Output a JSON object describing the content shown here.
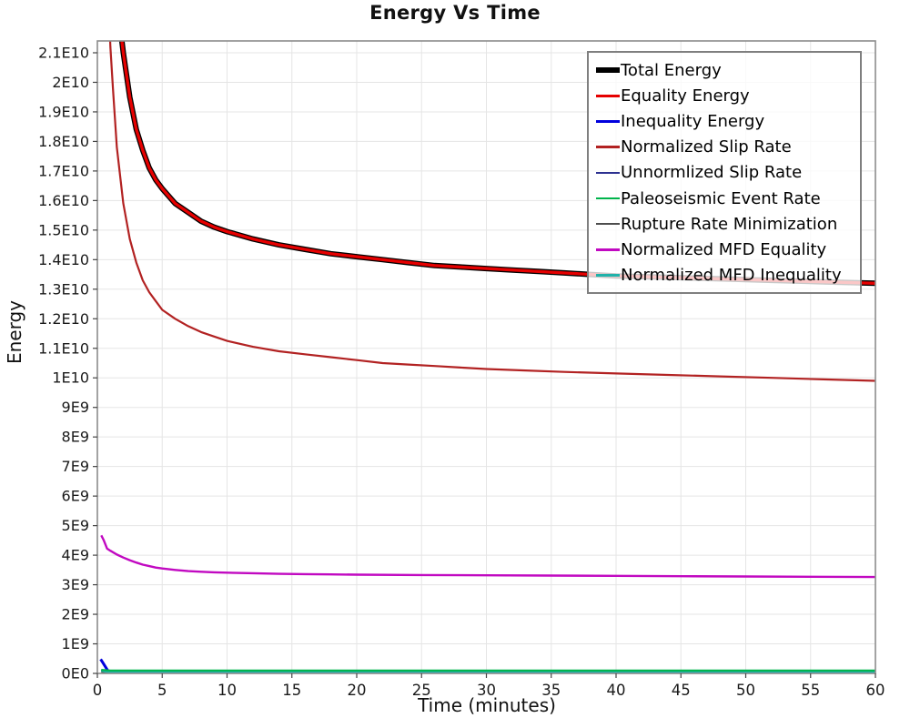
{
  "chart_data": {
    "type": "line",
    "title": "Energy Vs Time",
    "xlabel": "Time (minutes)",
    "ylabel": "Energy",
    "xlim": [
      0,
      60
    ],
    "ylim_e9": [
      0,
      21.4
    ],
    "grid": true,
    "x_ticks": [
      0,
      5,
      10,
      15,
      20,
      25,
      30,
      35,
      40,
      45,
      50,
      55,
      60
    ],
    "y_ticks": [
      {
        "v": 0,
        "label": "0E0"
      },
      {
        "v": 1,
        "label": "1E9"
      },
      {
        "v": 2,
        "label": "2E9"
      },
      {
        "v": 3,
        "label": "3E9"
      },
      {
        "v": 4,
        "label": "4E9"
      },
      {
        "v": 5,
        "label": "5E9"
      },
      {
        "v": 6,
        "label": "6E9"
      },
      {
        "v": 7,
        "label": "7E9"
      },
      {
        "v": 8,
        "label": "8E9"
      },
      {
        "v": 9,
        "label": "9E9"
      },
      {
        "v": 10,
        "label": "1E10"
      },
      {
        "v": 11,
        "label": "1.1E10"
      },
      {
        "v": 12,
        "label": "1.2E10"
      },
      {
        "v": 13,
        "label": "1.3E10"
      },
      {
        "v": 14,
        "label": "1.4E10"
      },
      {
        "v": 15,
        "label": "1.5E10"
      },
      {
        "v": 16,
        "label": "1.6E10"
      },
      {
        "v": 17,
        "label": "1.7E10"
      },
      {
        "v": 18,
        "label": "1.8E10"
      },
      {
        "v": 19,
        "label": "1.9E10"
      },
      {
        "v": 20,
        "label": "2E10"
      },
      {
        "v": 21,
        "label": "2.1E10"
      }
    ],
    "colors": {
      "background": "#ffffff",
      "grid": "#e5e5e5",
      "frame": "#8c8c8c",
      "tick": "#444444",
      "text": "#1a1a1a"
    },
    "legend_position": "top-right",
    "series": [
      {
        "name": "Total Energy",
        "color": "#000000",
        "line_width": 6,
        "z": 1,
        "points_e9": [
          [
            0.5,
            30
          ],
          [
            1,
            25.5
          ],
          [
            1.5,
            22.8
          ],
          [
            2,
            21.0
          ],
          [
            2.5,
            19.5
          ],
          [
            3,
            18.4
          ],
          [
            3.5,
            17.7
          ],
          [
            4,
            17.1
          ],
          [
            4.5,
            16.7
          ],
          [
            5,
            16.4
          ],
          [
            6,
            15.9
          ],
          [
            7,
            15.6
          ],
          [
            8,
            15.3
          ],
          [
            9,
            15.1
          ],
          [
            10,
            14.95
          ],
          [
            12,
            14.7
          ],
          [
            14,
            14.5
          ],
          [
            16,
            14.35
          ],
          [
            18,
            14.2
          ],
          [
            20,
            14.1
          ],
          [
            22,
            14.0
          ],
          [
            24,
            13.9
          ],
          [
            26,
            13.8
          ],
          [
            28,
            13.75
          ],
          [
            30,
            13.7
          ],
          [
            32,
            13.65
          ],
          [
            34,
            13.6
          ],
          [
            36,
            13.55
          ],
          [
            38,
            13.5
          ],
          [
            40,
            13.45
          ],
          [
            44,
            13.4
          ],
          [
            48,
            13.35
          ],
          [
            52,
            13.3
          ],
          [
            56,
            13.25
          ],
          [
            60,
            13.2
          ]
        ]
      },
      {
        "name": "Equality Energy",
        "color": "#e60000",
        "line_width": 3.4,
        "z": 2,
        "points_e9": [
          [
            0.5,
            30
          ],
          [
            1,
            25.5
          ],
          [
            1.5,
            22.8
          ],
          [
            2,
            21.0
          ],
          [
            2.5,
            19.5
          ],
          [
            3,
            18.4
          ],
          [
            3.5,
            17.7
          ],
          [
            4,
            17.1
          ],
          [
            4.5,
            16.7
          ],
          [
            5,
            16.4
          ],
          [
            6,
            15.9
          ],
          [
            7,
            15.6
          ],
          [
            8,
            15.3
          ],
          [
            9,
            15.1
          ],
          [
            10,
            14.95
          ],
          [
            12,
            14.7
          ],
          [
            14,
            14.5
          ],
          [
            16,
            14.35
          ],
          [
            18,
            14.2
          ],
          [
            20,
            14.1
          ],
          [
            22,
            14.0
          ],
          [
            24,
            13.9
          ],
          [
            26,
            13.8
          ],
          [
            28,
            13.75
          ],
          [
            30,
            13.7
          ],
          [
            32,
            13.65
          ],
          [
            34,
            13.6
          ],
          [
            36,
            13.55
          ],
          [
            38,
            13.5
          ],
          [
            40,
            13.45
          ],
          [
            44,
            13.4
          ],
          [
            48,
            13.35
          ],
          [
            52,
            13.3
          ],
          [
            56,
            13.25
          ],
          [
            60,
            13.2
          ]
        ]
      },
      {
        "name": "Inequality Energy",
        "color": "#0000dd",
        "line_width": 3,
        "z": 7,
        "points_e9": [
          [
            0.25,
            0.48
          ],
          [
            0.4,
            0.38
          ],
          [
            0.6,
            0.24
          ],
          [
            0.8,
            0.1
          ],
          [
            1,
            0.05
          ],
          [
            1.5,
            0.03
          ],
          [
            5,
            0.03
          ],
          [
            60,
            0.03
          ]
        ]
      },
      {
        "name": "Normalized Slip Rate",
        "color": "#b22222",
        "line_width": 2.2,
        "z": 3,
        "points_e9": [
          [
            0.5,
            28
          ],
          [
            0.8,
            23.5
          ],
          [
            1,
            21.2
          ],
          [
            1.2,
            19.8
          ],
          [
            1.5,
            17.8
          ],
          [
            2,
            15.9
          ],
          [
            2.5,
            14.7
          ],
          [
            3,
            13.9
          ],
          [
            3.5,
            13.3
          ],
          [
            4,
            12.9
          ],
          [
            4.5,
            12.6
          ],
          [
            5,
            12.3
          ],
          [
            6,
            12.0
          ],
          [
            7,
            11.75
          ],
          [
            8,
            11.55
          ],
          [
            9,
            11.4
          ],
          [
            10,
            11.25
          ],
          [
            12,
            11.05
          ],
          [
            14,
            10.9
          ],
          [
            16,
            10.8
          ],
          [
            18,
            10.7
          ],
          [
            20,
            10.6
          ],
          [
            22,
            10.5
          ],
          [
            24,
            10.45
          ],
          [
            26,
            10.4
          ],
          [
            28,
            10.35
          ],
          [
            30,
            10.3
          ],
          [
            33,
            10.25
          ],
          [
            36,
            10.2
          ],
          [
            40,
            10.15
          ],
          [
            44,
            10.1
          ],
          [
            48,
            10.05
          ],
          [
            52,
            10.0
          ],
          [
            56,
            9.95
          ],
          [
            60,
            9.9
          ]
        ]
      },
      {
        "name": "Unnormlized Slip Rate",
        "color": "#2d3190",
        "line_width": 2.2,
        "z": 4,
        "points_e9": [
          [
            0.3,
            0.12
          ],
          [
            0.6,
            0.06
          ],
          [
            1,
            0.03
          ],
          [
            5,
            0.03
          ],
          [
            60,
            0.03
          ]
        ]
      },
      {
        "name": "Paleoseismic Event Rate",
        "color": "#00b44b",
        "line_width": 2.2,
        "z": 9,
        "points_e9": [
          [
            0.3,
            0.12
          ],
          [
            1,
            0.1
          ],
          [
            5,
            0.1
          ],
          [
            60,
            0.1
          ]
        ]
      },
      {
        "name": "Rupture Rate Minimization",
        "color": "#4d4d4d",
        "line_width": 2.2,
        "z": 5,
        "points_e9": [
          [
            0.3,
            0.06
          ],
          [
            1,
            0.02
          ],
          [
            60,
            0.02
          ]
        ]
      },
      {
        "name": "Normalized MFD Equality",
        "color": "#c109c1",
        "line_width": 2.4,
        "z": 6,
        "points_e9": [
          [
            0.3,
            4.67
          ],
          [
            0.5,
            4.5
          ],
          [
            0.75,
            4.22
          ],
          [
            1,
            4.15
          ],
          [
            1.5,
            4.02
          ],
          [
            2,
            3.92
          ],
          [
            2.5,
            3.83
          ],
          [
            3,
            3.75
          ],
          [
            3.5,
            3.68
          ],
          [
            4,
            3.63
          ],
          [
            4.5,
            3.58
          ],
          [
            5,
            3.55
          ],
          [
            6,
            3.5
          ],
          [
            7,
            3.46
          ],
          [
            8,
            3.44
          ],
          [
            9,
            3.42
          ],
          [
            10,
            3.41
          ],
          [
            12,
            3.39
          ],
          [
            14,
            3.37
          ],
          [
            16,
            3.36
          ],
          [
            18,
            3.35
          ],
          [
            20,
            3.34
          ],
          [
            25,
            3.33
          ],
          [
            30,
            3.32
          ],
          [
            35,
            3.31
          ],
          [
            40,
            3.3
          ],
          [
            45,
            3.29
          ],
          [
            50,
            3.28
          ],
          [
            55,
            3.27
          ],
          [
            60,
            3.26
          ]
        ]
      },
      {
        "name": "Normalized MFD Inequality",
        "color": "#20b2aa",
        "line_width": 2.6,
        "z": 8,
        "points_e9": [
          [
            0.3,
            0.1
          ],
          [
            0.6,
            0.07
          ],
          [
            1,
            0.05
          ],
          [
            5,
            0.04
          ],
          [
            60,
            0.04
          ]
        ]
      }
    ]
  }
}
